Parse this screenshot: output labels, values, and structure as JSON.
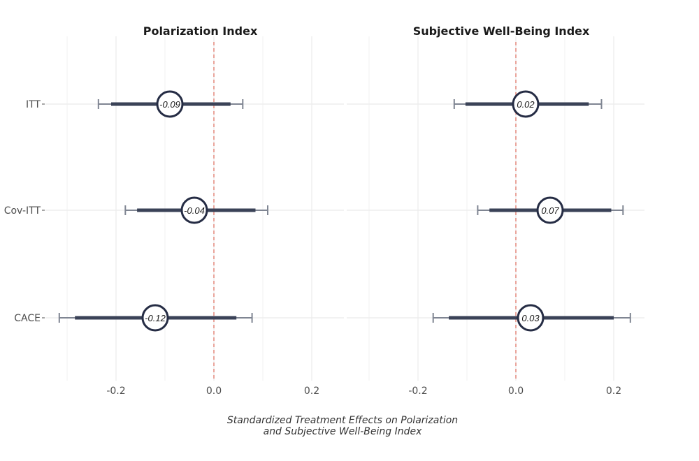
{
  "chart_data": [
    {
      "type": "forest",
      "title": "Polarization Index",
      "categories": [
        "ITT",
        "Cov-ITT",
        "CACE"
      ],
      "estimates": [
        -0.09,
        -0.04,
        -0.12
      ],
      "labels": [
        "-0.09",
        "-0.04",
        "-0.12"
      ],
      "ci_inner": [
        [
          -0.21,
          0.034
        ],
        [
          -0.157,
          0.085
        ],
        [
          -0.284,
          0.046
        ]
      ],
      "ci_outer": [
        [
          -0.236,
          0.059
        ],
        [
          -0.181,
          0.11
        ],
        [
          -0.316,
          0.078
        ]
      ],
      "xlim": [
        -0.3,
        0.26
      ],
      "xticks": [
        -0.2,
        0.0,
        0.2
      ],
      "xtick_labels": [
        "-0.2",
        "0.0",
        "0.2"
      ],
      "reference_line": 0
    },
    {
      "type": "forest",
      "title": "Subjective Well-Being Index",
      "categories": [
        "ITT",
        "Cov-ITT",
        "CACE"
      ],
      "estimates": [
        0.02,
        0.07,
        0.03
      ],
      "labels": [
        "0.02",
        "0.07",
        "0.03"
      ],
      "ci_inner": [
        [
          -0.103,
          0.149
        ],
        [
          -0.054,
          0.195
        ],
        [
          -0.137,
          0.2
        ]
      ],
      "ci_outer": [
        [
          -0.126,
          0.175
        ],
        [
          -0.078,
          0.219
        ],
        [
          -0.169,
          0.234
        ]
      ],
      "xlim": [
        -0.3,
        0.26
      ],
      "xticks": [
        -0.2,
        0.0,
        0.2
      ],
      "xtick_labels": [
        "-0.2",
        "0.0",
        "0.2"
      ],
      "reference_line": 0
    }
  ],
  "xlabel_line1": "Standardized Treatment Effects on Polarization",
  "xlabel_line2": "and Subjective Well-Being Index",
  "colors": {
    "grid": "#ebebeb",
    "reference": "#e0776a",
    "inner_ci": "#3a4257",
    "outer_ci": "#7f8592",
    "point_stroke": "#252c44",
    "point_fill": "#ffffff"
  }
}
